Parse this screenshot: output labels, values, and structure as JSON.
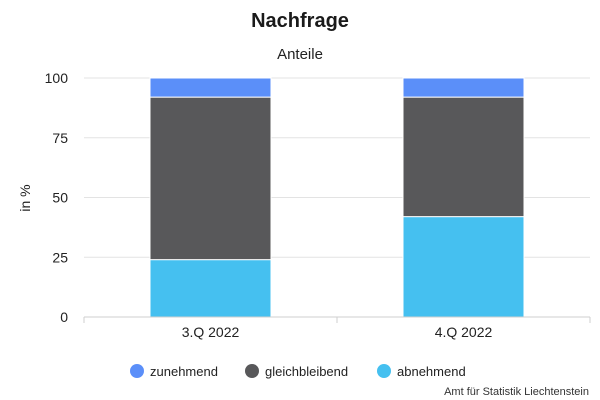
{
  "chart_data": {
    "type": "bar",
    "stacked": true,
    "title": "Nachfrage",
    "subtitle": "Anteile",
    "ylabel": "in %",
    "xlabel": "",
    "categories": [
      "3.Q 2022",
      "4.Q 2022"
    ],
    "ylim": [
      0,
      100
    ],
    "yticks": [
      0,
      25,
      50,
      75,
      100
    ],
    "grid": true,
    "legend_position": "bottom",
    "series": [
      {
        "name": "zunehmend",
        "color": "#5b8ff9",
        "values": [
          8,
          8
        ]
      },
      {
        "name": "gleichbleibend",
        "color": "#58585a",
        "values": [
          68,
          50
        ]
      },
      {
        "name": "abnehmend",
        "color": "#45c0f0",
        "values": [
          24,
          42
        ]
      }
    ],
    "credits": "Amt für Statistik Liechtenstein"
  }
}
